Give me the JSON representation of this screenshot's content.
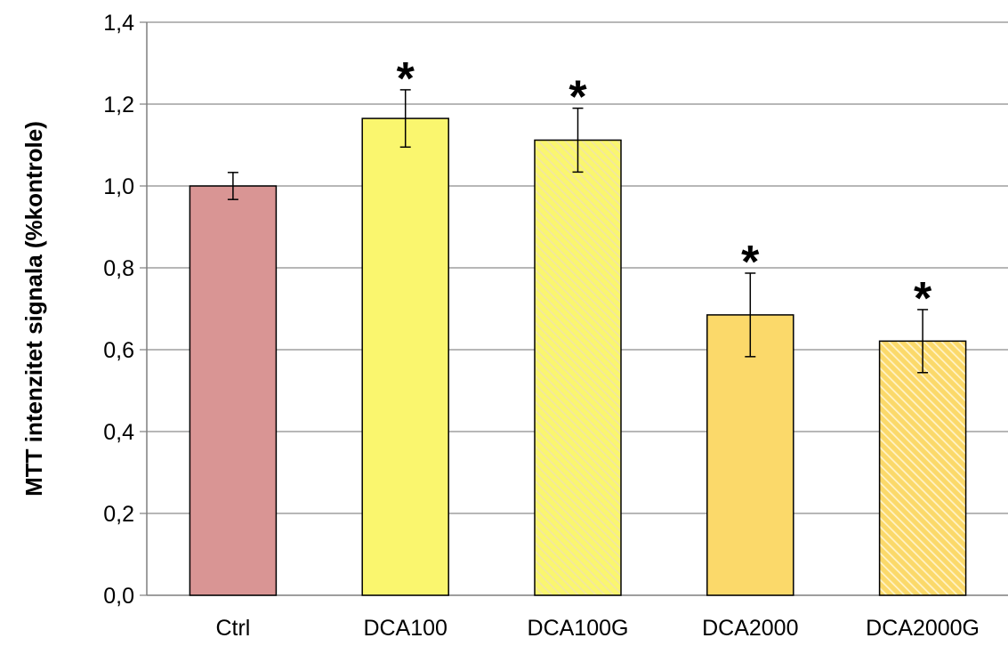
{
  "chart_data": {
    "type": "bar",
    "title": "",
    "xlabel": "",
    "ylabel": "MTT intenzitet signala (%kontrole)",
    "ylim": [
      0,
      1.4
    ],
    "yticks": [
      0.0,
      0.2,
      0.4,
      0.6,
      0.8,
      1.0,
      1.2,
      1.4
    ],
    "ytick_labels": [
      "0,0",
      "0,2",
      "0,4",
      "0,6",
      "0,8",
      "1,0",
      "1,2",
      "1,4"
    ],
    "grid": "horizontal",
    "legend": "none",
    "categories": [
      "Ctrl",
      "DCA100",
      "DCA100G",
      "DCA2000",
      "DCA2000G"
    ],
    "values": [
      1.0,
      1.165,
      1.112,
      0.685,
      0.621
    ],
    "errors": [
      0.033,
      0.07,
      0.078,
      0.102,
      0.077
    ],
    "significance": [
      "",
      "*",
      "*",
      "*",
      "*"
    ],
    "colors": [
      "#D99594",
      "#FAF66E",
      "#FAF66E",
      "#FBD96A",
      "#FBD96A"
    ],
    "hatched": [
      false,
      false,
      true,
      false,
      true
    ]
  }
}
